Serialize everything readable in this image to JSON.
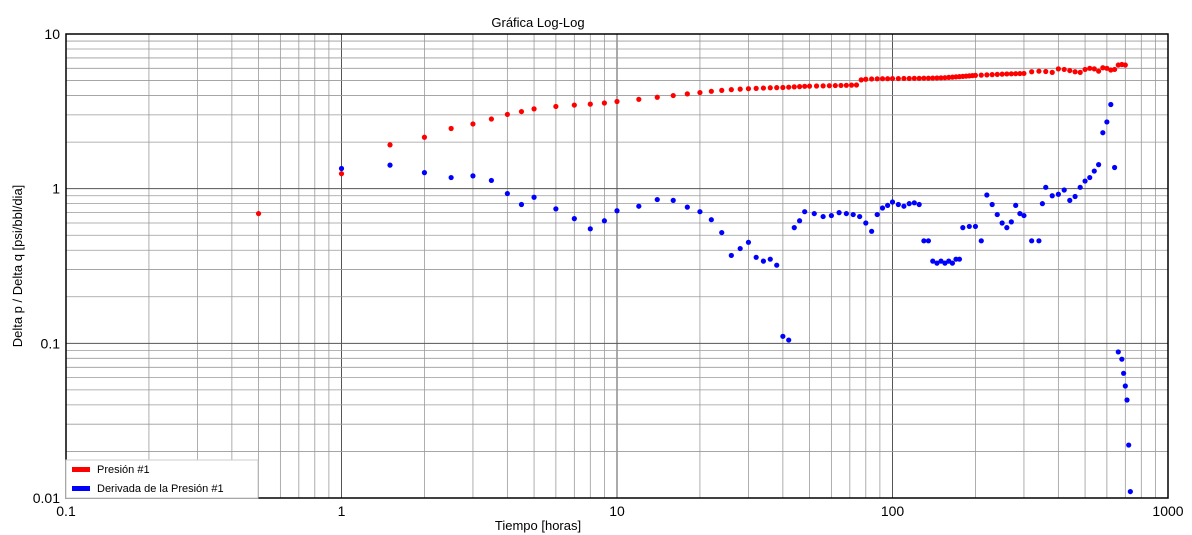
{
  "chart_data": {
    "type": "scatter",
    "title": "Gráfica Log-Log",
    "xlabel": "Tiempo [horas]",
    "ylabel": "Delta p / Delta q [psi/bbl/dia]",
    "xscale": "log",
    "yscale": "log",
    "xlim": [
      0.1,
      1000
    ],
    "ylim": [
      0.01,
      10
    ],
    "grid": true,
    "legend_position": "bottom-left",
    "x_ticks": [
      "0.1",
      "1",
      "10",
      "100",
      "1000"
    ],
    "y_ticks": [
      "0.01",
      "0.1",
      "1",
      "10"
    ],
    "series": [
      {
        "name": "Presión #1",
        "color": "#ff0000",
        "points": [
          [
            0.5,
            0.69
          ],
          [
            1.0,
            1.25
          ],
          [
            1.5,
            1.92
          ],
          [
            2.0,
            2.15
          ],
          [
            2.5,
            2.45
          ],
          [
            3.0,
            2.62
          ],
          [
            3.5,
            2.82
          ],
          [
            4.0,
            3.02
          ],
          [
            4.5,
            3.15
          ],
          [
            5.0,
            3.28
          ],
          [
            6.0,
            3.4
          ],
          [
            7.0,
            3.47
          ],
          [
            8.0,
            3.52
          ],
          [
            9.0,
            3.58
          ],
          [
            10.0,
            3.66
          ],
          [
            12.0,
            3.78
          ],
          [
            14.0,
            3.9
          ],
          [
            16.0,
            4.0
          ],
          [
            18.0,
            4.1
          ],
          [
            20.0,
            4.18
          ],
          [
            22.0,
            4.26
          ],
          [
            24.0,
            4.32
          ],
          [
            26.0,
            4.37
          ],
          [
            28.0,
            4.4
          ],
          [
            30.0,
            4.43
          ],
          [
            32.0,
            4.45
          ],
          [
            34.0,
            4.47
          ],
          [
            36.0,
            4.49
          ],
          [
            38.0,
            4.5
          ],
          [
            40.0,
            4.51
          ],
          [
            42.0,
            4.53
          ],
          [
            44.0,
            4.55
          ],
          [
            46.0,
            4.57
          ],
          [
            48.0,
            4.59
          ],
          [
            50.0,
            4.6
          ],
          [
            53.0,
            4.61
          ],
          [
            56.0,
            4.62
          ],
          [
            59.0,
            4.63
          ],
          [
            62.0,
            4.64
          ],
          [
            65.0,
            4.65
          ],
          [
            68.0,
            4.66
          ],
          [
            71.0,
            4.67
          ],
          [
            74.0,
            4.68
          ],
          [
            77.0,
            5.05
          ],
          [
            80.0,
            5.1
          ],
          [
            84.0,
            5.12
          ],
          [
            88.0,
            5.13
          ],
          [
            92.0,
            5.14
          ],
          [
            96.0,
            5.14
          ],
          [
            100.0,
            5.15
          ],
          [
            105.0,
            5.15
          ],
          [
            110.0,
            5.16
          ],
          [
            115.0,
            5.16
          ],
          [
            120.0,
            5.17
          ],
          [
            125.0,
            5.17
          ],
          [
            130.0,
            5.18
          ],
          [
            135.0,
            5.18
          ],
          [
            140.0,
            5.19
          ],
          [
            145.0,
            5.2
          ],
          [
            150.0,
            5.21
          ],
          [
            155.0,
            5.22
          ],
          [
            160.0,
            5.24
          ],
          [
            165.0,
            5.26
          ],
          [
            170.0,
            5.28
          ],
          [
            175.0,
            5.3
          ],
          [
            180.0,
            5.32
          ],
          [
            185.0,
            5.34
          ],
          [
            190.0,
            5.36
          ],
          [
            195.0,
            5.38
          ],
          [
            200.0,
            5.4
          ],
          [
            210.0,
            5.42
          ],
          [
            220.0,
            5.44
          ],
          [
            230.0,
            5.46
          ],
          [
            240.0,
            5.48
          ],
          [
            250.0,
            5.5
          ],
          [
            260.0,
            5.52
          ],
          [
            270.0,
            5.53
          ],
          [
            280.0,
            5.54
          ],
          [
            290.0,
            5.55
          ],
          [
            300.0,
            5.56
          ],
          [
            320.0,
            5.7
          ],
          [
            340.0,
            5.75
          ],
          [
            360.0,
            5.72
          ],
          [
            380.0,
            5.65
          ],
          [
            400.0,
            5.95
          ],
          [
            420.0,
            5.9
          ],
          [
            440.0,
            5.8
          ],
          [
            460.0,
            5.7
          ],
          [
            480.0,
            5.65
          ],
          [
            500.0,
            5.9
          ],
          [
            520.0,
            6.0
          ],
          [
            540.0,
            5.95
          ],
          [
            560.0,
            5.75
          ],
          [
            580.0,
            6.05
          ],
          [
            600.0,
            6.0
          ],
          [
            620.0,
            5.85
          ],
          [
            640.0,
            5.9
          ],
          [
            660.0,
            6.3
          ],
          [
            680.0,
            6.35
          ],
          [
            700.0,
            6.3
          ]
        ]
      },
      {
        "name": "Derivada de la Presión #1",
        "color": "#0000ff",
        "points": [
          [
            1.0,
            1.35
          ],
          [
            1.5,
            1.42
          ],
          [
            2.0,
            1.27
          ],
          [
            2.5,
            1.18
          ],
          [
            3.0,
            1.21
          ],
          [
            3.5,
            1.13
          ],
          [
            4.0,
            0.93
          ],
          [
            4.5,
            0.79
          ],
          [
            5.0,
            0.88
          ],
          [
            6.0,
            0.74
          ],
          [
            7.0,
            0.64
          ],
          [
            8.0,
            0.55
          ],
          [
            9.0,
            0.62
          ],
          [
            10.0,
            0.72
          ],
          [
            12.0,
            0.77
          ],
          [
            14.0,
            0.85
          ],
          [
            16.0,
            0.84
          ],
          [
            18.0,
            0.76
          ],
          [
            20.0,
            0.71
          ],
          [
            22.0,
            0.63
          ],
          [
            24.0,
            0.52
          ],
          [
            26.0,
            0.37
          ],
          [
            28.0,
            0.41
          ],
          [
            30.0,
            0.45
          ],
          [
            32.0,
            0.36
          ],
          [
            34.0,
            0.34
          ],
          [
            36.0,
            0.35
          ],
          [
            38.0,
            0.32
          ],
          [
            40.0,
            0.111
          ],
          [
            42.0,
            0.105
          ],
          [
            44.0,
            0.56
          ],
          [
            46.0,
            0.62
          ],
          [
            48.0,
            0.71
          ],
          [
            52.0,
            0.69
          ],
          [
            56.0,
            0.66
          ],
          [
            60.0,
            0.67
          ],
          [
            64.0,
            0.7
          ],
          [
            68.0,
            0.69
          ],
          [
            72.0,
            0.68
          ],
          [
            76.0,
            0.66
          ],
          [
            80.0,
            0.6
          ],
          [
            84.0,
            0.53
          ],
          [
            88.0,
            0.68
          ],
          [
            92.0,
            0.75
          ],
          [
            96.0,
            0.78
          ],
          [
            100.0,
            0.82
          ],
          [
            105.0,
            0.79
          ],
          [
            110.0,
            0.77
          ],
          [
            115.0,
            0.8
          ],
          [
            120.0,
            0.81
          ],
          [
            125.0,
            0.79
          ],
          [
            130.0,
            0.46
          ],
          [
            135.0,
            0.46
          ],
          [
            140.0,
            0.34
          ],
          [
            145.0,
            0.33
          ],
          [
            150.0,
            0.34
          ],
          [
            155.0,
            0.33
          ],
          [
            160.0,
            0.34
          ],
          [
            165.0,
            0.33
          ],
          [
            170.0,
            0.35
          ],
          [
            175.0,
            0.35
          ],
          [
            180.0,
            0.56
          ],
          [
            190.0,
            0.57
          ],
          [
            200.0,
            0.57
          ],
          [
            210.0,
            0.46
          ],
          [
            220.0,
            0.91
          ],
          [
            230.0,
            0.79
          ],
          [
            240.0,
            0.68
          ],
          [
            250.0,
            0.6
          ],
          [
            260.0,
            0.56
          ],
          [
            270.0,
            0.61
          ],
          [
            280.0,
            0.78
          ],
          [
            290.0,
            0.69
          ],
          [
            300.0,
            0.67
          ],
          [
            320.0,
            0.46
          ],
          [
            340.0,
            0.46
          ],
          [
            350.0,
            0.8
          ],
          [
            360.0,
            1.02
          ],
          [
            380.0,
            0.9
          ],
          [
            400.0,
            0.92
          ],
          [
            420.0,
            0.98
          ],
          [
            440.0,
            0.84
          ],
          [
            460.0,
            0.89
          ],
          [
            480.0,
            1.02
          ],
          [
            500.0,
            1.12
          ],
          [
            520.0,
            1.18
          ],
          [
            540.0,
            1.3
          ],
          [
            560.0,
            1.43
          ],
          [
            580.0,
            2.3
          ],
          [
            600.0,
            2.7
          ],
          [
            620.0,
            3.5
          ],
          [
            640.0,
            1.37
          ],
          [
            660.0,
            0.088
          ],
          [
            680.0,
            0.079
          ],
          [
            690.0,
            0.064
          ],
          [
            700.0,
            0.053
          ],
          [
            710.0,
            0.043
          ],
          [
            720.0,
            0.022
          ],
          [
            730.0,
            0.011
          ]
        ]
      }
    ]
  }
}
